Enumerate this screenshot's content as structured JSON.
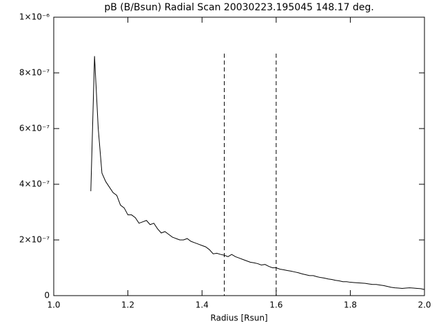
{
  "chart_data": {
    "type": "line",
    "title": "pB (B/Bsun) Radial Scan 20030223.195045 148.17 deg.",
    "x_label": "Radius [Rsun]",
    "x": [
      1.1,
      1.11,
      1.12,
      1.13,
      1.14,
      1.15,
      1.16,
      1.17,
      1.18,
      1.19,
      1.2,
      1.21,
      1.22,
      1.23,
      1.24,
      1.25,
      1.26,
      1.27,
      1.28,
      1.29,
      1.3,
      1.31,
      1.32,
      1.33,
      1.34,
      1.35,
      1.36,
      1.37,
      1.38,
      1.39,
      1.4,
      1.41,
      1.42,
      1.43,
      1.44,
      1.45,
      1.46,
      1.47,
      1.48,
      1.49,
      1.5,
      1.51,
      1.52,
      1.53,
      1.54,
      1.55,
      1.56,
      1.57,
      1.58,
      1.59,
      1.6,
      1.61,
      1.62,
      1.63,
      1.64,
      1.65,
      1.66,
      1.67,
      1.68,
      1.69,
      1.7,
      1.71,
      1.72,
      1.73,
      1.74,
      1.75,
      1.76,
      1.77,
      1.78,
      1.79,
      1.8,
      1.81,
      1.82,
      1.83,
      1.84,
      1.85,
      1.86,
      1.87,
      1.88,
      1.89,
      1.9,
      1.91,
      1.92,
      1.93,
      1.94,
      1.95,
      1.96,
      1.97,
      1.98,
      1.99,
      2.0
    ],
    "values": [
      3.75e-07,
      8.6e-07,
      6e-07,
      4.4e-07,
      4.1e-07,
      3.9e-07,
      3.7e-07,
      3.6e-07,
      3.25e-07,
      3.15e-07,
      2.9e-07,
      2.9e-07,
      2.8e-07,
      2.6e-07,
      2.65e-07,
      2.7e-07,
      2.55e-07,
      2.6e-07,
      2.4e-07,
      2.25e-07,
      2.3e-07,
      2.2e-07,
      2.1e-07,
      2.05e-07,
      2e-07,
      2e-07,
      2.05e-07,
      1.95e-07,
      1.9e-07,
      1.85e-07,
      1.8e-07,
      1.75e-07,
      1.65e-07,
      1.5e-07,
      1.52e-07,
      1.48e-07,
      1.45e-07,
      1.4e-07,
      1.48e-07,
      1.4e-07,
      1.35e-07,
      1.3e-07,
      1.25e-07,
      1.2e-07,
      1.18e-07,
      1.15e-07,
      1.1e-07,
      1.12e-07,
      1.05e-07,
      1e-07,
      1e-07,
      9.5e-08,
      9.3e-08,
      9e-08,
      8.8e-08,
      8.5e-08,
      8.2e-08,
      7.8e-08,
      7.5e-08,
      7.2e-08,
      7.2e-08,
      6.8e-08,
      6.5e-08,
      6.3e-08,
      6e-08,
      5.8e-08,
      5.5e-08,
      5.3e-08,
      5e-08,
      5e-08,
      4.8e-08,
      4.7e-08,
      4.6e-08,
      4.5e-08,
      4.4e-08,
      4.2e-08,
      4e-08,
      4e-08,
      3.8e-08,
      3.6e-08,
      3.3e-08,
      3e-08,
      2.8e-08,
      2.7e-08,
      2.6e-08,
      2.7e-08,
      2.8e-08,
      2.7e-08,
      2.6e-08,
      2.5e-08,
      2.2e-08
    ],
    "color": "#000000",
    "vlines": [
      1.46,
      1.6
    ],
    "xlim": [
      1,
      2
    ],
    "xticks": [
      {
        "value": 1,
        "label": "1.0"
      },
      1.2,
      1.4,
      1.6,
      1.8,
      {
        "value": 2,
        "label": "2.0"
      }
    ],
    "ylim": [
      0,
      1e-06
    ],
    "yticks": [
      0,
      {
        "value": 2e-07,
        "label": "2×10⁻⁷"
      },
      {
        "value": 4e-07,
        "label": "4×10⁻⁷"
      },
      {
        "value": 6e-07,
        "label": "6×10⁻⁷"
      },
      {
        "value": 8e-07,
        "label": "8×10⁻⁷"
      },
      {
        "value": 1e-06,
        "label": "1×10⁻⁶"
      }
    ]
  }
}
